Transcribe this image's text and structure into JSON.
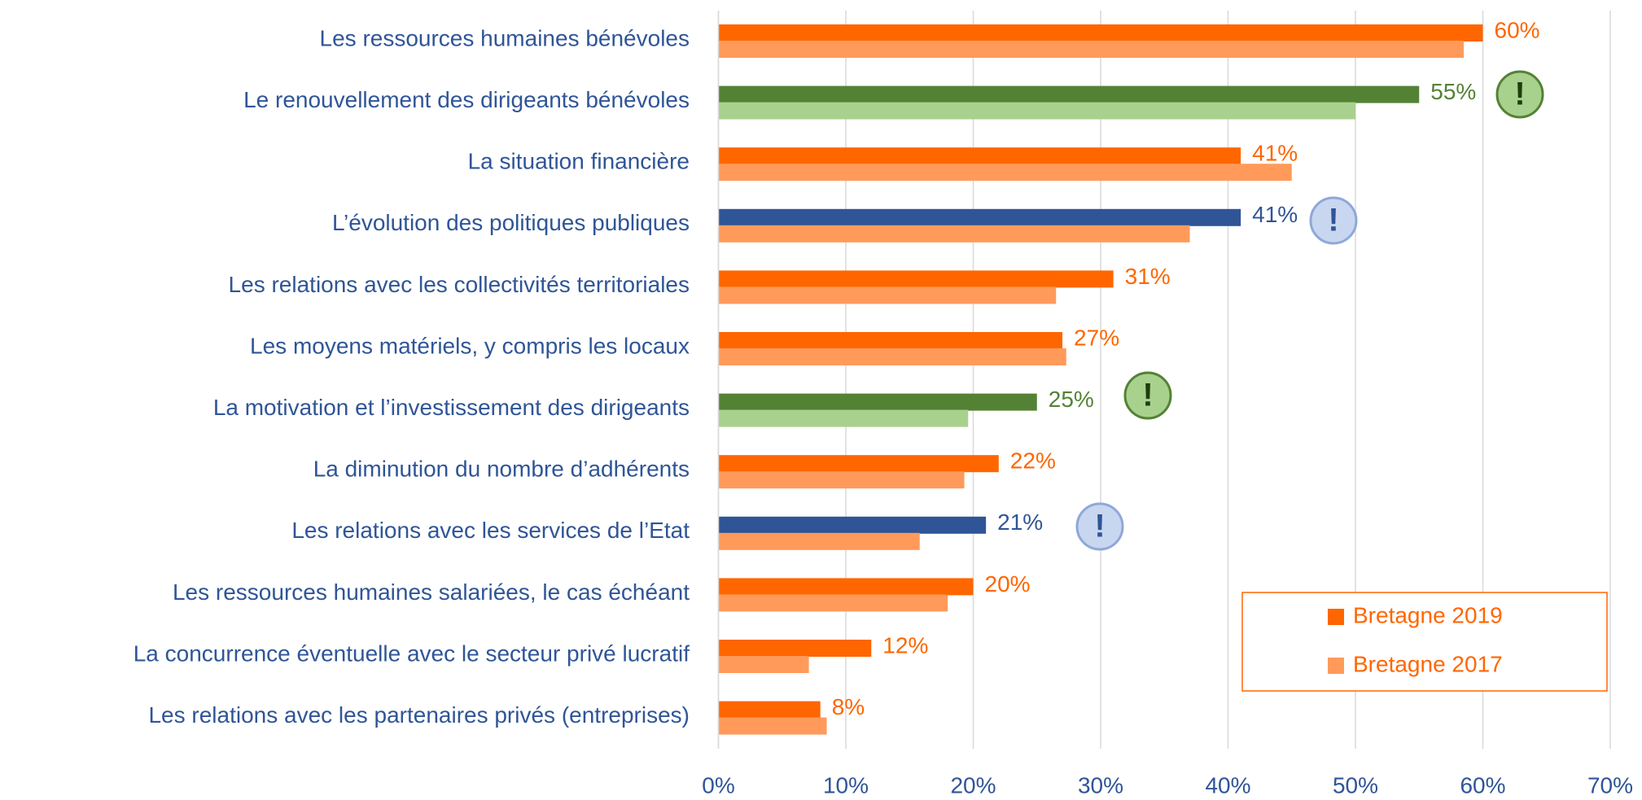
{
  "chart_data": {
    "type": "barh",
    "categories": [
      "Les ressources humaines bénévoles",
      "Le renouvellement des dirigeants bénévoles",
      "La situation financière",
      "L’évolution des politiques publiques",
      "Les relations avec les collectivités territoriales",
      "Les moyens matériels, y compris les locaux",
      "La motivation et l’investissement des dirigeants",
      "La diminution du nombre d’adhérents",
      "Les relations avec les services de l’Etat",
      "Les ressources humaines salariées, le cas échéant",
      "La concurrence éventuelle avec le secteur privé lucratif",
      "Les relations avec les partenaires privés (entreprises)"
    ],
    "series": [
      {
        "name": "Bretagne 2019",
        "color": "#ff6600",
        "colors": [
          "#ff6600",
          "#548235",
          "#ff6600",
          "#2f5597",
          "#ff6600",
          "#ff6600",
          "#548235",
          "#ff6600",
          "#2f5597",
          "#ff6600",
          "#ff6600",
          "#ff6600"
        ],
        "values": [
          60,
          55,
          41,
          41,
          31,
          27,
          25,
          22,
          21,
          20,
          12,
          8
        ],
        "value_labels": [
          "60%",
          "55%",
          "41%",
          "41%",
          "31%",
          "27%",
          "25%",
          "22%",
          "21%",
          "20%",
          "12%",
          "8%"
        ]
      },
      {
        "name": "Bretagne 2017",
        "color": "#ff9a5a",
        "colors": [
          "#ff9a5a",
          "#a9d18e",
          "#ff9a5a",
          "#ff9a5a",
          "#ff9a5a",
          "#ff9a5a",
          "#a9d18e",
          "#ff9a5a",
          "#ff9a5a",
          "#ff9a5a",
          "#ff9a5a",
          "#ff9a5a"
        ],
        "values": [
          58.5,
          50,
          45,
          37,
          26.5,
          27.3,
          19.6,
          19.3,
          15.8,
          18,
          7.1,
          8.5
        ]
      }
    ],
    "xlim": [
      0,
      70
    ],
    "xticks": [
      {
        "value": 0,
        "label": "0%"
      },
      {
        "value": 10,
        "label": "10%"
      },
      {
        "value": 20,
        "label": "20%"
      },
      {
        "value": 30,
        "label": "30%"
      },
      {
        "value": 40,
        "label": "40%"
      },
      {
        "value": 50,
        "label": "50%"
      },
      {
        "value": 60,
        "label": "60%"
      },
      {
        "value": 70,
        "label": "70%"
      }
    ],
    "grid": true,
    "legend": "lower right"
  }
}
